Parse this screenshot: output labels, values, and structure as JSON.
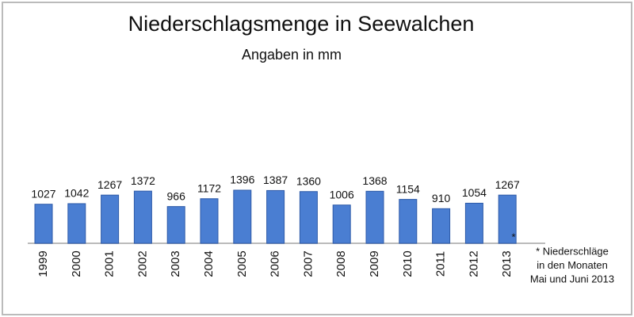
{
  "chart_data": {
    "type": "bar",
    "title": "Niederschlagsmenge in Seewalchen",
    "subtitle": "Angaben in mm",
    "categories": [
      "1999",
      "2000",
      "2001",
      "2002",
      "2003",
      "2004",
      "2005",
      "2006",
      "2007",
      "2008",
      "2009",
      "2010",
      "2011",
      "2012",
      "2013"
    ],
    "values": [
      1027,
      1042,
      1267,
      1372,
      966,
      1172,
      1396,
      1387,
      1360,
      1006,
      1368,
      1154,
      910,
      1054,
      1267
    ],
    "color": "#4a7ed2",
    "marker": "*",
    "footnote": [
      "* Niederschläge",
      "in den Monaten",
      "Mai und Juni 2013"
    ]
  }
}
